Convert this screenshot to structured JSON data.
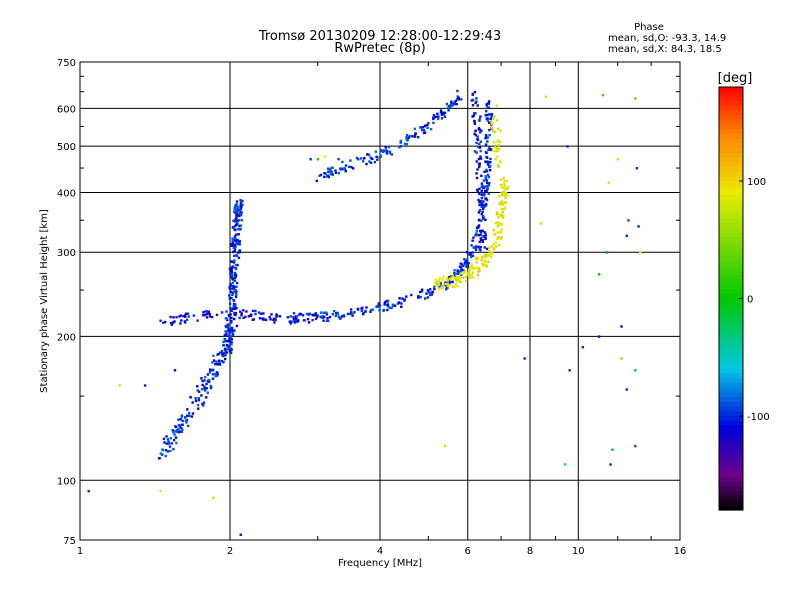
{
  "chart_data": {
    "type": "scatter",
    "title": "Tromsø 20130209 12:28:00-12:29:43",
    "subtitle": "RwPretec (8p)",
    "xlabel": "Frequency [MHz]",
    "ylabel": "Stationary phase Virtual Height [km]",
    "xscale": "log",
    "yscale": "log",
    "xlim": [
      1,
      16
    ],
    "ylim": [
      75,
      750
    ],
    "xticks": [
      1,
      2,
      4,
      6,
      8,
      10,
      16
    ],
    "xtick_labels": [
      "1",
      "2",
      "4",
      "6",
      "8",
      "10",
      "16"
    ],
    "yticks": [
      75,
      100,
      200,
      300,
      400,
      500,
      600,
      750
    ],
    "ytick_labels": [
      "75",
      "100",
      "200",
      "300",
      "400",
      "500",
      "600",
      "750"
    ],
    "grid": true,
    "stats": {
      "title": "Phase",
      "line_o": "mean, sd,O: -93.3, 14.9",
      "line_x": "mean, sd,X:  84.3, 18.5"
    },
    "colorbar": {
      "label": "[deg]",
      "min": -180,
      "max": 180,
      "ticks": [
        100,
        0,
        -100
      ],
      "tick_labels": [
        "100",
        "0",
        "-100"
      ]
    },
    "series": [
      {
        "traces": [
          {
            "pts": [
              [
                1.45,
                112
              ],
              [
                1.5,
                118
              ],
              [
                1.58,
                128
              ],
              [
                1.66,
                138
              ],
              [
                1.74,
                150
              ],
              [
                1.82,
                163
              ],
              [
                1.9,
                178
              ],
              [
                1.97,
                192
              ],
              [
                2.02,
                205
              ]
            ],
            "spread": 0.025,
            "n": 160,
            "phase": -100
          },
          {
            "pts": [
              [
                1.97,
                185
              ],
              [
                2.0,
                215
              ],
              [
                2.03,
                255
              ],
              [
                2.05,
                300
              ],
              [
                2.07,
                350
              ],
              [
                2.08,
                380
              ]
            ],
            "spread": 0.02,
            "n": 230,
            "phase": -100
          },
          {
            "pts": [
              [
                1.45,
                215
              ],
              [
                1.6,
                218
              ],
              [
                1.8,
                222
              ],
              [
                2.0,
                226
              ],
              [
                2.2,
                222
              ],
              [
                2.45,
                218
              ],
              [
                2.65,
                218
              ],
              [
                2.75,
                220
              ]
            ],
            "spread": 0.015,
            "n": 110,
            "phase": -110
          },
          {
            "pts": [
              [
                2.75,
                218
              ],
              [
                3.1,
                220
              ],
              [
                3.6,
                226
              ],
              [
                4.2,
                233
              ],
              [
                4.8,
                243
              ],
              [
                5.4,
                258
              ],
              [
                5.9,
                280
              ],
              [
                6.2,
                310
              ],
              [
                6.4,
                360
              ],
              [
                6.55,
                420
              ],
              [
                6.6,
                520
              ],
              [
                6.62,
                640
              ]
            ],
            "spread": 0.015,
            "n": 300,
            "phase": -100
          },
          {
            "pts": [
              [
                3.0,
                430
              ],
              [
                3.4,
                455
              ],
              [
                3.9,
                475
              ],
              [
                4.4,
                505
              ],
              [
                4.9,
                545
              ],
              [
                5.4,
                590
              ],
              [
                5.8,
                640
              ]
            ],
            "spread": 0.015,
            "n": 150,
            "phase": -100
          },
          {
            "pts": [
              [
                6.2,
                640
              ],
              [
                6.28,
                540
              ],
              [
                6.33,
                460
              ],
              [
                6.36,
                400
              ],
              [
                6.4,
                340
              ],
              [
                6.45,
                300
              ]
            ],
            "spread": 0.018,
            "n": 110,
            "phase": -105
          },
          {
            "pts": [
              [
                5.2,
                255
              ],
              [
                5.7,
                263
              ],
              [
                6.2,
                277
              ],
              [
                6.6,
                295
              ],
              [
                6.9,
                330
              ],
              [
                7.05,
                380
              ],
              [
                7.1,
                430
              ]
            ],
            "spread": 0.02,
            "n": 170,
            "phase": 90
          },
          {
            "pts": [
              [
                6.8,
                600
              ],
              [
                6.85,
                520
              ],
              [
                6.9,
                450
              ]
            ],
            "spread": 0.02,
            "n": 30,
            "phase": 90
          }
        ],
        "scatter": [
          [
            9.5,
            500,
            -100
          ],
          [
            10.2,
            190,
            -100
          ],
          [
            11.2,
            640,
            20
          ],
          [
            11.5,
            420,
            100
          ],
          [
            12.0,
            470,
            80
          ],
          [
            12.2,
            210,
            -120
          ],
          [
            12.5,
            325,
            -100
          ],
          [
            12.6,
            350,
            -90
          ],
          [
            13.0,
            630,
            40
          ],
          [
            13.0,
            170,
            -20
          ],
          [
            13.0,
            118,
            -90
          ],
          [
            13.2,
            340,
            -100
          ],
          [
            11.0,
            200,
            -110
          ],
          [
            11.7,
            116,
            -70
          ],
          [
            11.6,
            108,
            -100
          ],
          [
            9.4,
            108,
            -60
          ],
          [
            9.6,
            170,
            -100
          ],
          [
            12.2,
            180,
            60
          ],
          [
            12.5,
            155,
            -100
          ],
          [
            11.4,
            300,
            -80
          ],
          [
            13.3,
            300,
            90
          ],
          [
            13.1,
            450,
            -100
          ],
          [
            11.0,
            270,
            0
          ],
          [
            8.6,
            635,
            100
          ],
          [
            8.4,
            345,
            100
          ],
          [
            7.8,
            180,
            -100
          ],
          [
            1.04,
            95,
            -100
          ],
          [
            1.45,
            95,
            90
          ],
          [
            1.85,
            92,
            100
          ],
          [
            2.1,
            77,
            -100
          ],
          [
            2.1,
            77,
            -100
          ],
          [
            1.2,
            158,
            100
          ],
          [
            1.35,
            158,
            -100
          ],
          [
            1.55,
            170,
            -110
          ],
          [
            5.4,
            118,
            100
          ],
          [
            3.3,
            470,
            -90
          ],
          [
            3.1,
            476,
            90
          ],
          [
            3.0,
            470,
            10
          ],
          [
            2.9,
            470,
            -100
          ]
        ]
      }
    ]
  }
}
